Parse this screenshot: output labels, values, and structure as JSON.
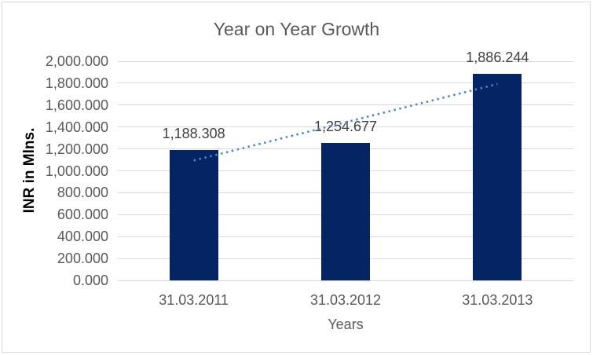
{
  "chart_data": {
    "type": "bar",
    "title": "Year on Year Growth",
    "xlabel": "Years",
    "ylabel": "INR in Mlns.",
    "categories": [
      "31.03.2011",
      "31.03.2012",
      "31.03.2013"
    ],
    "values": [
      1188.308,
      1254.677,
      1886.244
    ],
    "data_labels": [
      "1,188.308",
      "1,254.677",
      "1,886.244"
    ],
    "ylim": [
      0,
      2000
    ],
    "ytick_step": 200,
    "ytick_labels": [
      "0.000",
      "200.000",
      "400.000",
      "600.000",
      "800.000",
      "1,000.000",
      "1,200.000",
      "1,400.000",
      "1,600.000",
      "1,800.000",
      "2,000.000"
    ],
    "grid": true,
    "legend": "none",
    "trendline": {
      "type": "linear",
      "style": "dotted",
      "color": "#4E86C8"
    },
    "colors": {
      "bar": "#052464",
      "gridline": "#D9D9D9",
      "border": "#D9D9D9",
      "background": "#FFFFFF",
      "title_text": "#595959",
      "tick_text": "#595959",
      "data_label_text": "#404040",
      "axis_title_text": "#000000"
    }
  }
}
